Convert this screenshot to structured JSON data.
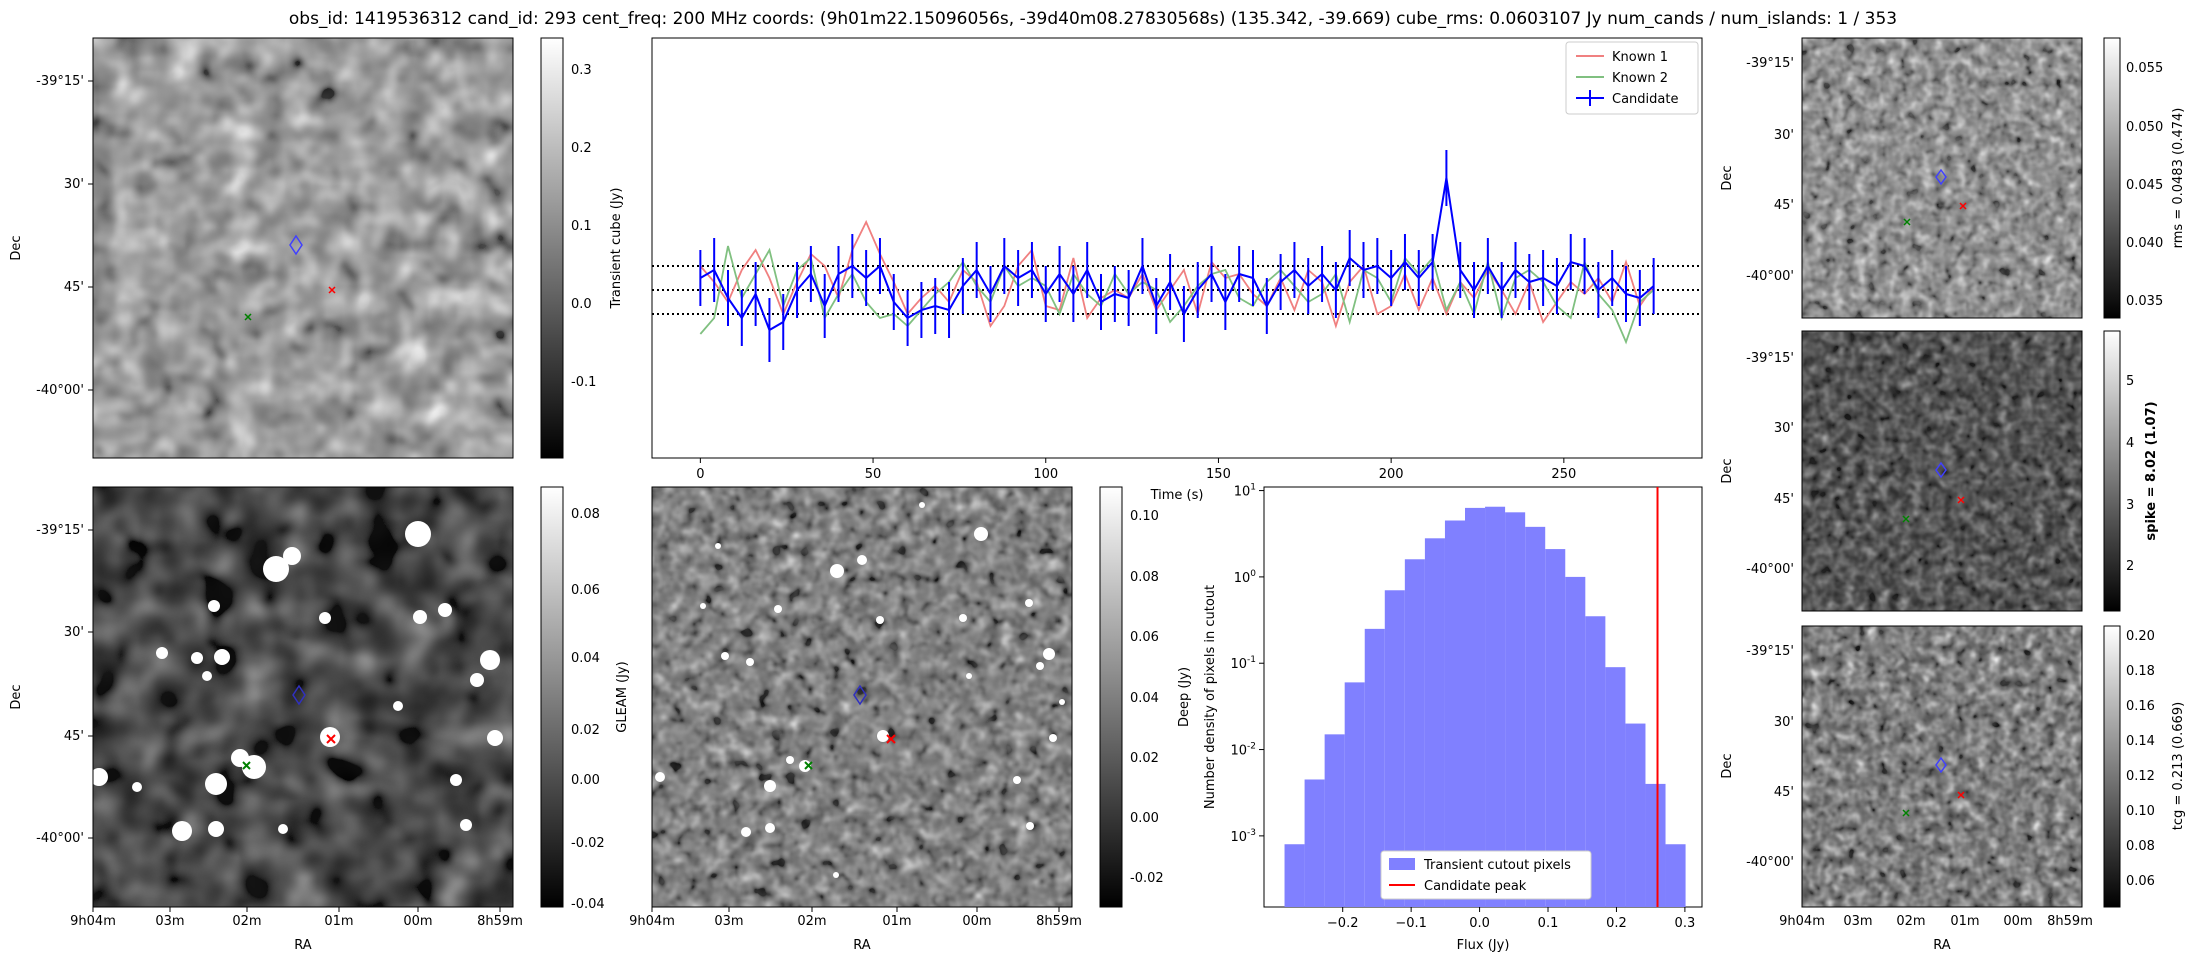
{
  "title": "obs_id: 1419536312 cand_id: 293 cent_freq: 200 MHz coords: (9h01m22.15096056s, -39d40m08.27830568s) (135.342, -39.669) cube_rms: 0.0603107 Jy num_cands / num_islands: 1 / 353",
  "colors": {
    "candidate": "#0000ff",
    "known1": "#f08080",
    "known2": "#80c080",
    "peak": "#ff0000",
    "hist": "#8080ff"
  },
  "ra_ticks": [
    "9h04m",
    "03m",
    "02m",
    "01m",
    "00m",
    "8h59m"
  ],
  "dec_ticks": [
    "-39°15'",
    "30'",
    "45'",
    "-40°00'"
  ],
  "panels": {
    "transient": {
      "colorbar_label": "Transient cube (Jy)",
      "cbar_ticks": [
        "0.3",
        "0.2",
        "0.1",
        "0.0",
        "-0.1"
      ],
      "ylabel": "Dec"
    },
    "gleam": {
      "colorbar_label": "GLEAM (Jy)",
      "cbar_ticks": [
        "0.08",
        "0.06",
        "0.04",
        "0.02",
        "0.00",
        "-0.02",
        "-0.04"
      ],
      "ylabel": "Dec",
      "xlabel": "RA"
    },
    "deep": {
      "colorbar_label": "Deep (Jy)",
      "cbar_ticks": [
        "0.10",
        "0.08",
        "0.06",
        "0.04",
        "0.02",
        "0.00",
        "-0.02"
      ],
      "xlabel": "RA"
    },
    "rms": {
      "colorbar_label": "rms = 0.0483 (0.474)",
      "cbar_ticks": [
        "0.055",
        "0.050",
        "0.045",
        "0.040",
        "0.035"
      ],
      "ylabel": "Dec"
    },
    "spike": {
      "colorbar_label": "spike = 8.02 (1.07)",
      "cbar_ticks": [
        "5",
        "4",
        "3",
        "2"
      ],
      "ylabel": "Dec"
    },
    "tcg": {
      "colorbar_label": "tcg = 0.213 (0.669)",
      "cbar_ticks": [
        "0.20",
        "0.18",
        "0.16",
        "0.14",
        "0.12",
        "0.10",
        "0.08",
        "0.06"
      ],
      "ylabel": "Dec",
      "xlabel": "RA"
    }
  },
  "chart_data": [
    {
      "type": "line",
      "title": "",
      "xlabel": "Time (s)",
      "ylabel": "",
      "xlim": [
        -14,
        290
      ],
      "ylim": [
        -0.42,
        0.63
      ],
      "xticks": [
        0,
        50,
        100,
        150,
        200,
        250
      ],
      "hlines": [
        0.06,
        0.0,
        -0.06
      ],
      "x": [
        0,
        4,
        8,
        12,
        16,
        20,
        24,
        28,
        32,
        36,
        40,
        44,
        48,
        52,
        56,
        60,
        64,
        68,
        72,
        76,
        80,
        84,
        88,
        92,
        96,
        100,
        104,
        108,
        112,
        116,
        120,
        124,
        128,
        132,
        136,
        140,
        144,
        148,
        152,
        156,
        160,
        164,
        168,
        172,
        176,
        180,
        184,
        188,
        192,
        196,
        200,
        204,
        208,
        212,
        216,
        220,
        224,
        228,
        232,
        236,
        240,
        244,
        248,
        252,
        256,
        260,
        264,
        268,
        272,
        276
      ],
      "series": [
        {
          "name": "Known 1",
          "values": [
            0.06,
            0.02,
            -0.03,
            0.05,
            0.1,
            0.03,
            -0.06,
            0.02,
            0.09,
            0.06,
            -0.02,
            0.1,
            0.17,
            0.09,
            0.02,
            -0.06,
            -0.02,
            0.01,
            -0.03,
            0.05,
            0.02,
            -0.09,
            -0.04,
            0.06,
            0.1,
            -0.04,
            -0.05,
            0.08,
            -0.07,
            -0.02,
            0.0,
            -0.02,
            0.04,
            -0.05,
            0.0,
            0.05,
            -0.06,
            0.07,
            0.03,
            0.04,
            -0.01,
            -0.04,
            0.03,
            -0.05,
            0.05,
            0.02,
            -0.09,
            0.02,
            0.06,
            -0.06,
            -0.04,
            0.04,
            -0.05,
            0.03,
            -0.06,
            0.02,
            -0.02,
            0.05,
            0.0,
            -0.06,
            0.02,
            -0.08,
            -0.03,
            0.02,
            -0.01,
            0.03,
            -0.03,
            0.07,
            -0.04,
            0.01
          ]
        },
        {
          "name": "Known 2",
          "values": [
            -0.11,
            -0.07,
            0.11,
            -0.02,
            0.04,
            0.1,
            -0.04,
            0.05,
            0.08,
            -0.07,
            -0.01,
            0.04,
            -0.03,
            -0.07,
            -0.06,
            -0.09,
            -0.05,
            -0.01,
            0.02,
            0.07,
            0.01,
            -0.03,
            0.06,
            0.01,
            0.03,
            0.01,
            -0.06,
            0.04,
            -0.01,
            -0.04,
            0.04,
            -0.01,
            0.02,
            0.0,
            -0.08,
            -0.04,
            0.01,
            0.04,
            0.05,
            -0.02,
            -0.04,
            0.02,
            0.05,
            0.01,
            -0.03,
            -0.01,
            0.04,
            -0.08,
            0.05,
            0.03,
            -0.03,
            0.08,
            0.04,
            0.08,
            -0.05,
            0.02,
            -0.06,
            0.07,
            -0.07,
            0.03,
            0.05,
            0.02,
            -0.04,
            -0.07,
            0.07,
            -0.01,
            -0.05,
            -0.13,
            -0.03,
            0.0
          ]
        },
        {
          "name": "Candidate",
          "values": [
            0.03,
            0.05,
            -0.02,
            -0.07,
            -0.01,
            -0.1,
            -0.08,
            0.0,
            0.04,
            -0.04,
            0.04,
            0.06,
            0.03,
            0.06,
            -0.03,
            -0.07,
            -0.05,
            -0.04,
            -0.05,
            0.01,
            0.05,
            -0.01,
            0.06,
            0.03,
            0.05,
            -0.01,
            0.04,
            -0.01,
            0.05,
            -0.03,
            -0.01,
            -0.02,
            0.06,
            -0.04,
            0.02,
            -0.06,
            0.0,
            0.04,
            -0.03,
            0.04,
            0.03,
            -0.04,
            0.02,
            0.05,
            0.01,
            0.04,
            0.0,
            0.08,
            0.05,
            0.06,
            0.03,
            0.07,
            0.03,
            0.07,
            0.28,
            0.05,
            0.0,
            0.06,
            0.0,
            0.05,
            0.02,
            0.03,
            0.01,
            0.07,
            0.06,
            0.0,
            0.03,
            -0.01,
            -0.02,
            0.01
          ],
          "errors": [
            0.07,
            0.08,
            0.07,
            0.07,
            0.08,
            0.08,
            0.07,
            0.07,
            0.07,
            0.08,
            0.07,
            0.08,
            0.07,
            0.07,
            0.07,
            0.07,
            0.07,
            0.07,
            0.07,
            0.07,
            0.07,
            0.07,
            0.07,
            0.07,
            0.07,
            0.07,
            0.07,
            0.07,
            0.07,
            0.07,
            0.07,
            0.07,
            0.07,
            0.07,
            0.07,
            0.07,
            0.07,
            0.07,
            0.07,
            0.07,
            0.07,
            0.07,
            0.07,
            0.07,
            0.07,
            0.07,
            0.07,
            0.07,
            0.07,
            0.07,
            0.07,
            0.07,
            0.07,
            0.07,
            0.07,
            0.07,
            0.07,
            0.07,
            0.07,
            0.07,
            0.07,
            0.07,
            0.07,
            0.07,
            0.07,
            0.07,
            0.07,
            0.07,
            0.07,
            0.07
          ]
        }
      ],
      "legend": [
        "Known 1",
        "Known 2",
        "Candidate"
      ],
      "legend_position": "top-right"
    },
    {
      "type": "bar",
      "title": "",
      "xlabel": "Flux (Jy)",
      "ylabel": "Number density of pixels in cutout",
      "yscale": "log",
      "xlim": [
        -0.315,
        0.325
      ],
      "ylim": [
        0.00015,
        11
      ],
      "xticks": [
        -0.2,
        -0.1,
        0.0,
        0.1,
        0.2,
        0.3
      ],
      "xtick_labels": [
        "−0.2",
        "−0.1",
        "0.0",
        "0.1",
        "0.2",
        "0.3"
      ],
      "yticks": [
        "10^1",
        "10^0",
        "10^-1",
        "10^-2",
        "10^-3"
      ],
      "bin_edges": [
        -0.285,
        -0.2557,
        -0.2264,
        -0.1971,
        -0.1678,
        -0.1385,
        -0.1092,
        -0.0799,
        -0.0506,
        -0.0213,
        0.008,
        0.0373,
        0.0666,
        0.0959,
        0.1252,
        0.1545,
        0.1838,
        0.2131,
        0.2424,
        0.2717,
        0.301
      ],
      "values": [
        0.0008,
        0.0045,
        0.015,
        0.06,
        0.25,
        0.7,
        1.6,
        2.8,
        4.5,
        6.3,
        6.5,
        5.6,
        3.8,
        2.1,
        1.0,
        0.35,
        0.09,
        0.02,
        0.004,
        0.0008
      ],
      "vline": 0.26,
      "legend": [
        "Transient cutout pixels",
        "Candidate peak"
      ],
      "legend_position": "lower-center"
    }
  ]
}
